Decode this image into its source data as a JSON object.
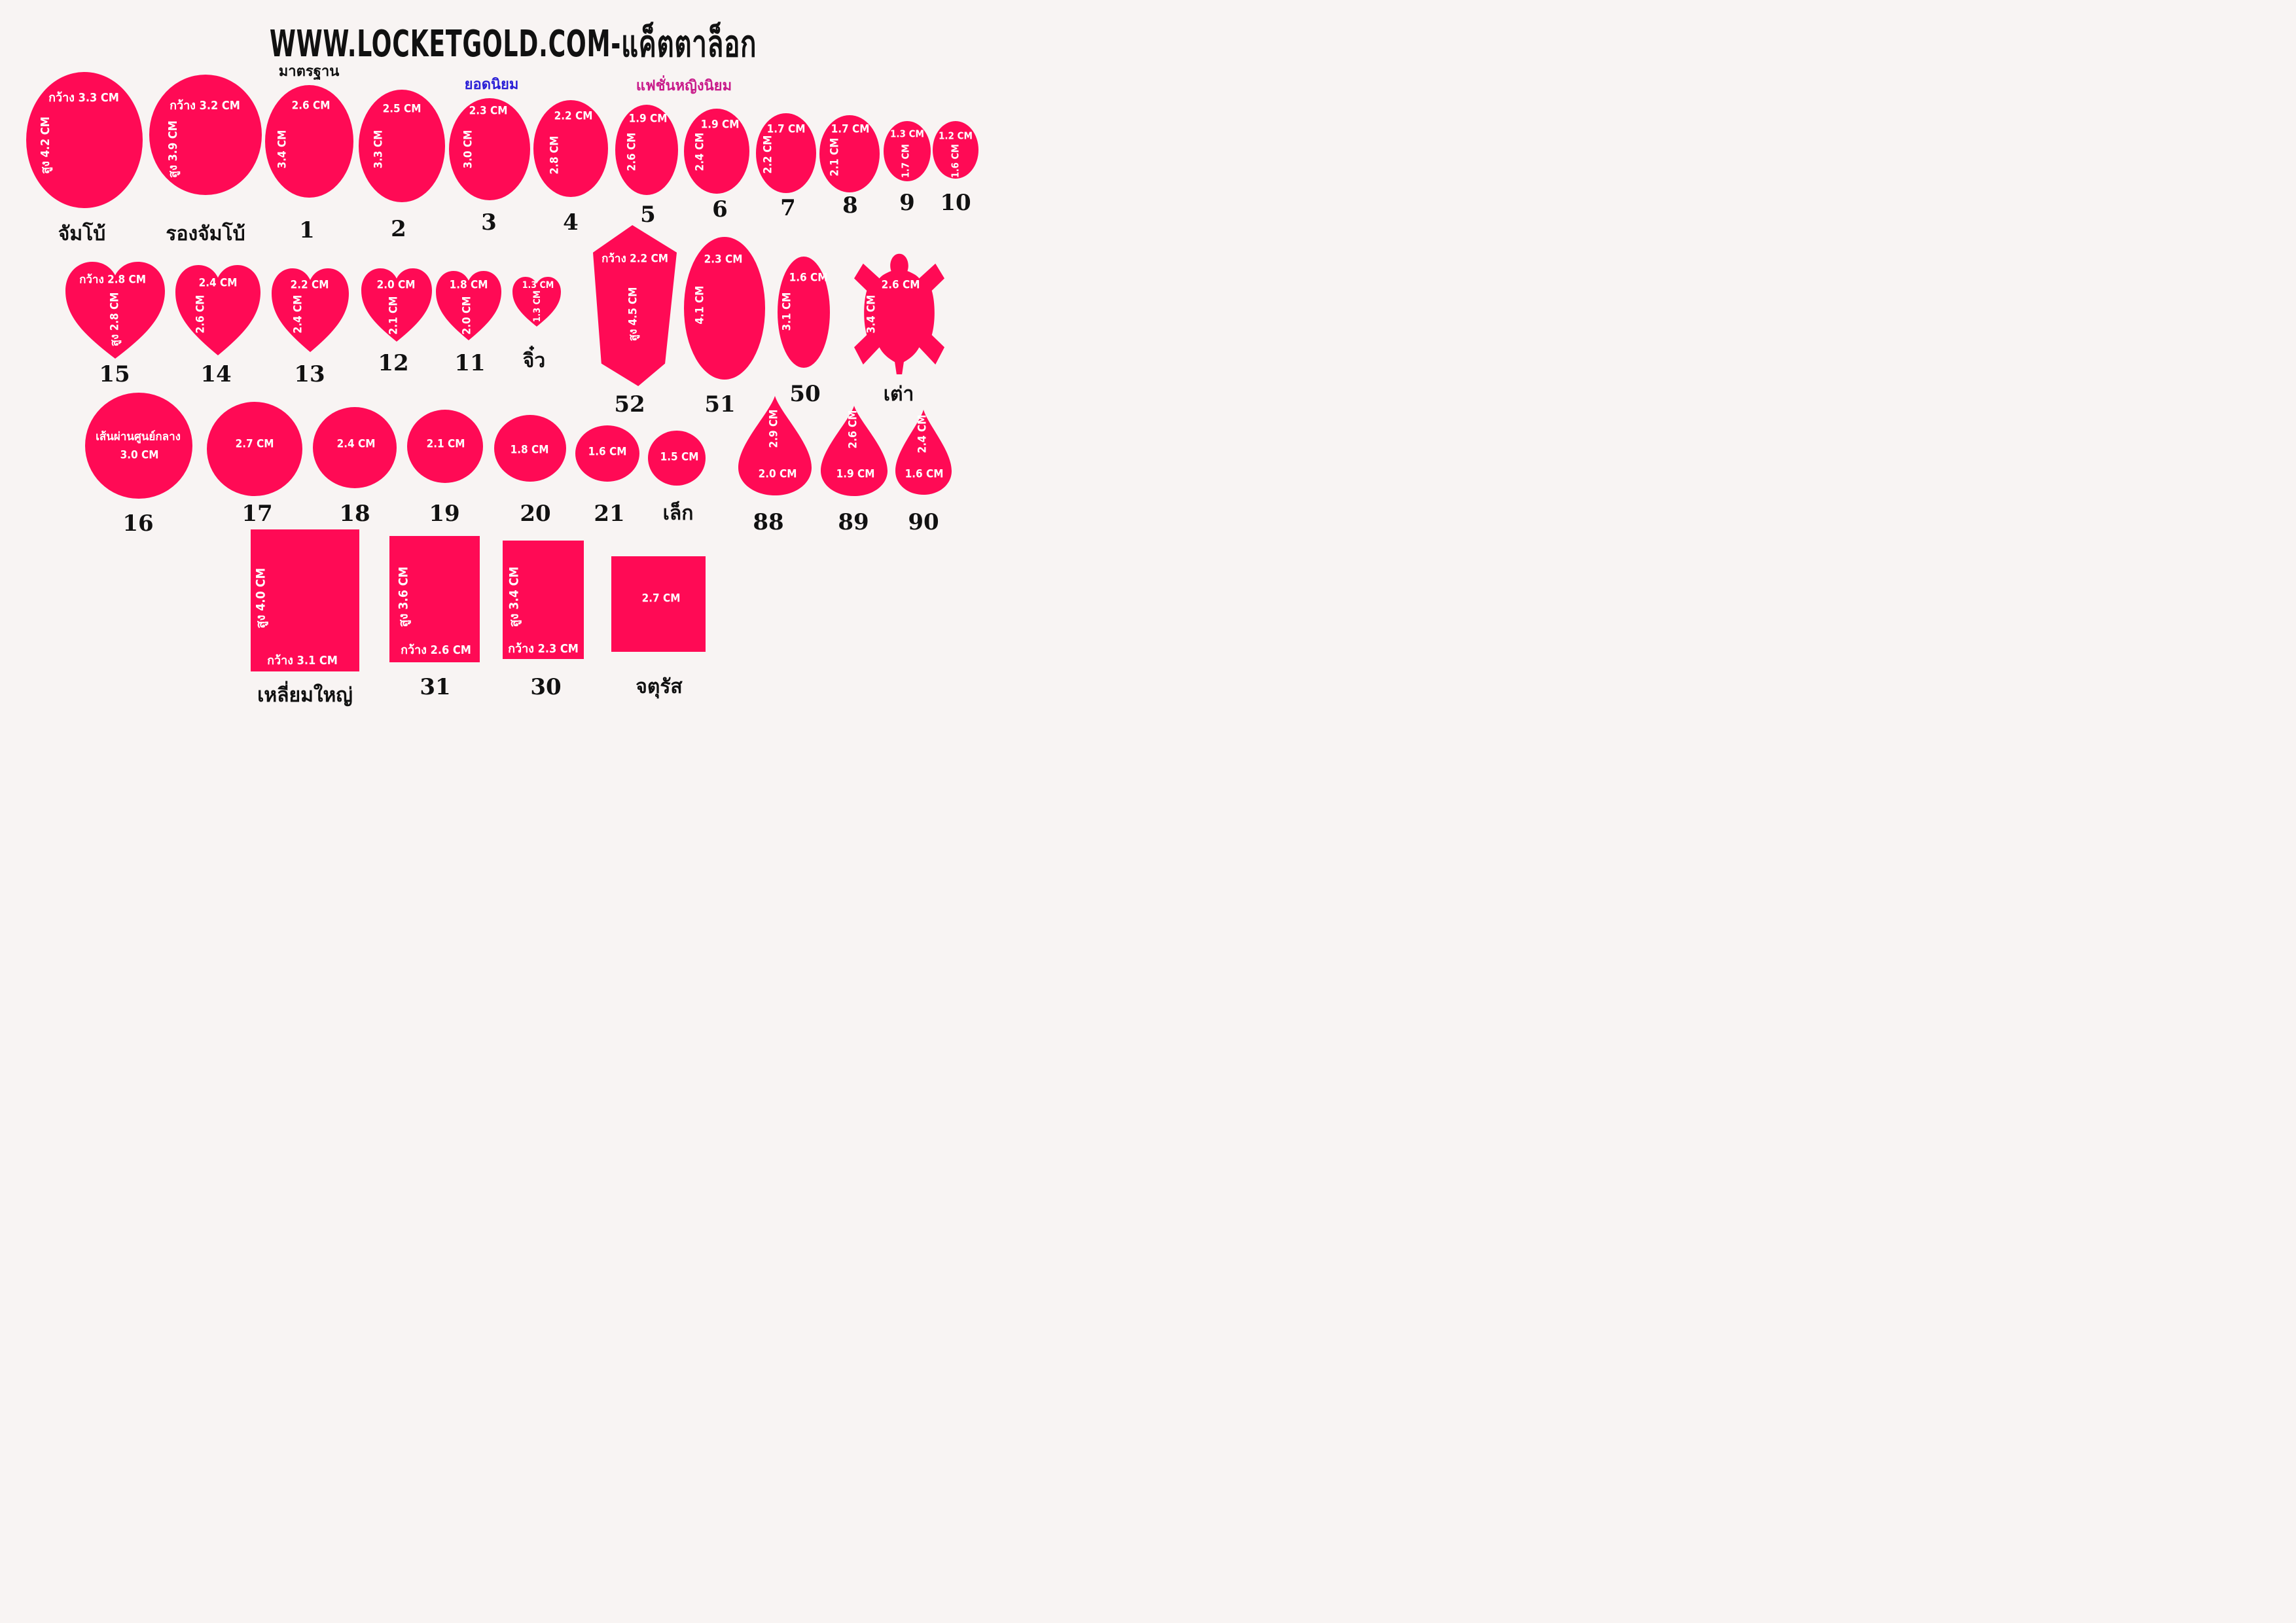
{
  "title": "WWW.LOCKETGOLD.COM-แค็ตตาล็อก",
  "categories": [
    {
      "key": "standard",
      "text": "มาตรฐาน",
      "color": "#111111"
    },
    {
      "key": "popular",
      "text": "ยอดนิยม",
      "color": "#2a1fd6"
    },
    {
      "key": "fashion",
      "text": "แฟชั่นหญิงนิยม",
      "color": "#c81a8a"
    }
  ],
  "colors": {
    "shape": "#ff0a55",
    "dimension_text": "#ffffff",
    "label": "#111111",
    "background": "#f8f4f3"
  },
  "shapes": [
    {
      "type": "ellipse",
      "label": "จัมโบ้",
      "dims": [
        "กว้าง 3.3 CM",
        "สูง 4.2 CM"
      ]
    },
    {
      "type": "ellipse",
      "label": "รองจัมโบ้",
      "dims": [
        "กว้าง 3.2 CM",
        "สูง 3.9 CM"
      ]
    },
    {
      "type": "ellipse",
      "label": "1",
      "dims": [
        "2.6 CM",
        "3.4 CM"
      ]
    },
    {
      "type": "ellipse",
      "label": "2",
      "dims": [
        "2.5 CM",
        "3.3 CM"
      ]
    },
    {
      "type": "ellipse",
      "label": "3",
      "dims": [
        "2.3 CM",
        "3.0 CM"
      ]
    },
    {
      "type": "ellipse",
      "label": "4",
      "dims": [
        "2.2 CM",
        "2.8 CM"
      ]
    },
    {
      "type": "ellipse",
      "label": "5",
      "dims": [
        "1.9 CM",
        "2.6 CM"
      ]
    },
    {
      "type": "ellipse",
      "label": "6",
      "dims": [
        "1.9 CM",
        "2.4 CM"
      ]
    },
    {
      "type": "ellipse",
      "label": "7",
      "dims": [
        "1.7 CM",
        "2.2 CM"
      ]
    },
    {
      "type": "ellipse",
      "label": "8",
      "dims": [
        "1.7 CM",
        "2.1 CM"
      ]
    },
    {
      "type": "ellipse",
      "label": "9",
      "dims": [
        "1.3 CM",
        "1.7 CM"
      ]
    },
    {
      "type": "ellipse",
      "label": "10",
      "dims": [
        "1.2 CM",
        "1.6 CM"
      ]
    },
    {
      "type": "heart",
      "label": "15",
      "dims": [
        "กว้าง 2.8 CM",
        "สูง 2.8 CM"
      ]
    },
    {
      "type": "heart",
      "label": "14",
      "dims": [
        "2.4 CM",
        "2.6 CM"
      ]
    },
    {
      "type": "heart",
      "label": "13",
      "dims": [
        "2.2 CM",
        "2.4 CM"
      ]
    },
    {
      "type": "heart",
      "label": "12",
      "dims": [
        "2.0 CM",
        "2.1 CM"
      ]
    },
    {
      "type": "heart",
      "label": "11",
      "dims": [
        "1.8 CM",
        "2.0 CM"
      ]
    },
    {
      "type": "heart",
      "label": "จิ๋ว",
      "dims": [
        "1.3 CM",
        "1.3 CM"
      ]
    },
    {
      "type": "hexagon",
      "label": "52",
      "dims": [
        "กว้าง 2.2 CM",
        "สูง 4.5 CM"
      ]
    },
    {
      "type": "ellipse",
      "label": "51",
      "dims": [
        "2.3 CM",
        "4.1 CM"
      ]
    },
    {
      "type": "ellipse",
      "label": "50",
      "dims": [
        "1.6 CM",
        "3.1 CM"
      ]
    },
    {
      "type": "turtle",
      "label": "เต่า",
      "dims": [
        "2.6 CM",
        "3.4 CM"
      ]
    },
    {
      "type": "circle",
      "label": "16",
      "dims": [
        "เส้นผ่านศูนย์กลาง",
        "3.0 CM"
      ]
    },
    {
      "type": "circle",
      "label": "17",
      "dims": [
        "2.7 CM"
      ]
    },
    {
      "type": "circle",
      "label": "18",
      "dims": [
        "2.4 CM"
      ]
    },
    {
      "type": "circle",
      "label": "19",
      "dims": [
        "2.1 CM"
      ]
    },
    {
      "type": "circle",
      "label": "20",
      "dims": [
        "1.8 CM"
      ]
    },
    {
      "type": "circle",
      "label": "21",
      "dims": [
        "1.6 CM"
      ]
    },
    {
      "type": "circle",
      "label": "เล็ก",
      "dims": [
        "1.5 CM"
      ]
    },
    {
      "type": "teardrop",
      "label": "88",
      "dims": [
        "2.9 CM",
        "2.0 CM"
      ]
    },
    {
      "type": "teardrop",
      "label": "89",
      "dims": [
        "2.6 CM",
        "1.9 CM"
      ]
    },
    {
      "type": "teardrop",
      "label": "90",
      "dims": [
        "2.4 CM",
        "1.6 CM"
      ]
    },
    {
      "type": "rect",
      "label": "เหลี่ยมใหญ่",
      "dims": [
        "สูง 4.0 CM",
        "กว้าง 3.1 CM"
      ]
    },
    {
      "type": "rect",
      "label": "31",
      "dims": [
        "สูง 3.6 CM",
        "กว้าง 2.6 CM"
      ]
    },
    {
      "type": "rect",
      "label": "30",
      "dims": [
        "สูง 3.4 CM",
        "กว้าง 2.3 CM"
      ]
    },
    {
      "type": "rect",
      "label": "จตุรัส",
      "dims": [
        "2.7 CM"
      ]
    }
  ]
}
